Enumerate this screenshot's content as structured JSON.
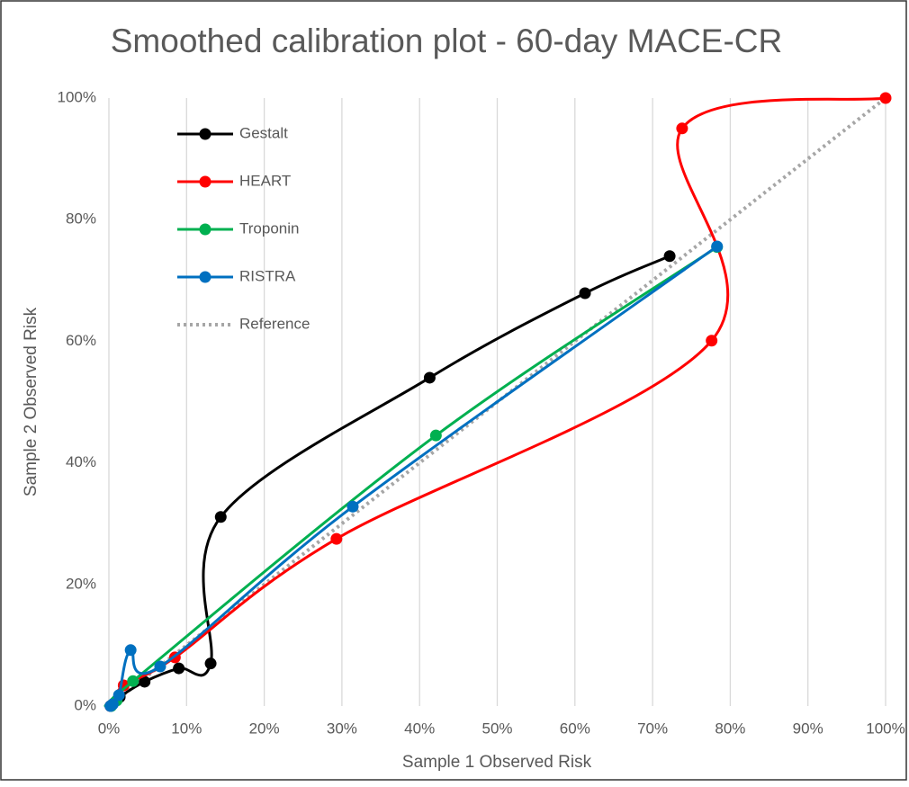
{
  "chart_data": {
    "type": "smooth-scatter",
    "title": "Smoothed calibration plot - 60-day MACE-CR",
    "x_label": "Sample 1 Observed Risk",
    "y_label": "Sample 2 Observed Risk",
    "xlim": [
      0,
      100
    ],
    "ylim": [
      0,
      100
    ],
    "xticks": [
      {
        "value": 0,
        "label": "0%"
      },
      {
        "value": 10,
        "label": "10%"
      },
      {
        "value": 20,
        "label": "20%"
      },
      {
        "value": 30,
        "label": "30%"
      },
      {
        "value": 40,
        "label": "40%"
      },
      {
        "value": 50,
        "label": "50%"
      },
      {
        "value": 60,
        "label": "60%"
      },
      {
        "value": 70,
        "label": "70%"
      },
      {
        "value": 80,
        "label": "80%"
      },
      {
        "value": 90,
        "label": "90%"
      },
      {
        "value": 100,
        "label": "100%"
      }
    ],
    "yticks": [
      {
        "value": 0,
        "label": "0%"
      },
      {
        "value": 20,
        "label": "20%"
      },
      {
        "value": 40,
        "label": "40%"
      },
      {
        "value": 60,
        "label": "60%"
      },
      {
        "value": 80,
        "label": "80%"
      },
      {
        "value": 100,
        "label": "100%"
      }
    ],
    "xgrid": true,
    "legend": "top-left",
    "series": [
      {
        "name": "Gestalt",
        "color": "#000000",
        "markers": true,
        "line_style": "solid",
        "x": [
          0.3,
          1.4,
          4.6,
          9.0,
          13.1,
          14.4,
          41.3,
          61.3,
          72.2
        ],
        "values": [
          0.1,
          1.5,
          4.0,
          6.2,
          7.0,
          31.1,
          54.0,
          67.9,
          74.0
        ]
      },
      {
        "name": "HEART",
        "color": "#ff0000",
        "markers": true,
        "line_style": "solid",
        "x": [
          0.2,
          1.9,
          8.5,
          29.3,
          77.6,
          73.8,
          100
        ],
        "values": [
          0,
          3.4,
          8.0,
          27.5,
          60.1,
          95.0,
          100
        ]
      },
      {
        "name": "Troponin",
        "color": "#00b050",
        "markers": true,
        "line_style": "solid",
        "x": [
          0.3,
          1.0,
          3.1,
          42.1,
          78.3
        ],
        "values": [
          0,
          0.9,
          4.1,
          44.5,
          75.5
        ]
      },
      {
        "name": "RISTRA",
        "color": "#0070c0",
        "markers": true,
        "line_style": "solid",
        "x": [
          0.2,
          0.5,
          1.3,
          2.8,
          6.6,
          31.4,
          78.3
        ],
        "values": [
          0,
          0.3,
          1.8,
          9.2,
          6.5,
          32.8,
          75.6
        ]
      },
      {
        "name": "Reference",
        "color": "#a6a6a6",
        "markers": false,
        "line_style": "dotted",
        "x": [
          0,
          100
        ],
        "values": [
          0,
          100
        ]
      }
    ]
  }
}
